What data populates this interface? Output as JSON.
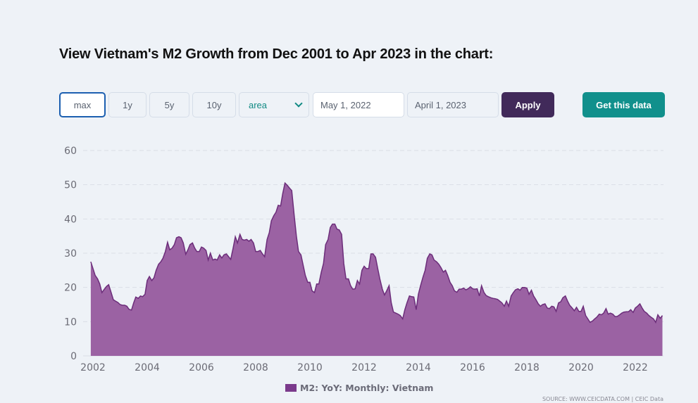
{
  "page": {
    "title": "View Vietnam's M2 Growth from Dec 2001 to Apr 2023 in the chart:"
  },
  "controls": {
    "ranges": [
      {
        "label": "max",
        "active": true
      },
      {
        "label": "1y",
        "active": false
      },
      {
        "label": "5y",
        "active": false
      },
      {
        "label": "10y",
        "active": false
      }
    ],
    "chart_type": {
      "selected": "area",
      "icon": "chevron-down-icon"
    },
    "start_date": "May 1, 2022",
    "end_date": "April 1, 2023",
    "apply_label": "Apply",
    "get_data_label": "Get this data"
  },
  "colors": {
    "area_fill": "#9b62a3",
    "area_line": "#6c2d7a",
    "apply_bg": "#412a5a",
    "get_data_bg": "#11908c",
    "active_border": "#1c5fb0"
  },
  "chart_data": {
    "type": "area",
    "title": "",
    "xlabel": "",
    "ylabel": "",
    "ylim": [
      0,
      60
    ],
    "xlim": [
      2001.9,
      2023.0
    ],
    "yticks": [
      0,
      10,
      20,
      30,
      40,
      50,
      60
    ],
    "xticks": [
      2002,
      2004,
      2006,
      2008,
      2010,
      2012,
      2014,
      2016,
      2018,
      2020,
      2022
    ],
    "grid": true,
    "legend_position": "bottom-center",
    "series": [
      {
        "name": "M2: YoY: Monthly: Vietnam",
        "points": [
          [
            2001.92,
            27.5
          ],
          [
            2002.0,
            25.5
          ],
          [
            2002.08,
            23.5
          ],
          [
            2002.17,
            22.5
          ],
          [
            2002.25,
            21.0
          ],
          [
            2002.33,
            18.5
          ],
          [
            2002.42,
            19.5
          ],
          [
            2002.5,
            20.3
          ],
          [
            2002.58,
            20.8
          ],
          [
            2002.67,
            18.5
          ],
          [
            2002.75,
            16.4
          ],
          [
            2002.83,
            16.0
          ],
          [
            2002.92,
            15.6
          ],
          [
            2003.0,
            15.0
          ],
          [
            2003.08,
            14.8
          ],
          [
            2003.17,
            14.8
          ],
          [
            2003.25,
            14.5
          ],
          [
            2003.33,
            13.6
          ],
          [
            2003.42,
            13.4
          ],
          [
            2003.5,
            15.5
          ],
          [
            2003.58,
            17.2
          ],
          [
            2003.67,
            16.8
          ],
          [
            2003.75,
            17.5
          ],
          [
            2003.83,
            17.3
          ],
          [
            2003.92,
            18.0
          ],
          [
            2004.0,
            22.0
          ],
          [
            2004.08,
            23.2
          ],
          [
            2004.17,
            22.0
          ],
          [
            2004.25,
            22.8
          ],
          [
            2004.33,
            25.0
          ],
          [
            2004.42,
            26.8
          ],
          [
            2004.5,
            27.5
          ],
          [
            2004.58,
            28.5
          ],
          [
            2004.67,
            30.5
          ],
          [
            2004.75,
            33.2
          ],
          [
            2004.83,
            31.0
          ],
          [
            2004.92,
            31.5
          ],
          [
            2005.0,
            32.5
          ],
          [
            2005.08,
            34.5
          ],
          [
            2005.17,
            34.8
          ],
          [
            2005.25,
            34.5
          ],
          [
            2005.33,
            33.0
          ],
          [
            2005.42,
            29.7
          ],
          [
            2005.5,
            31.0
          ],
          [
            2005.58,
            32.5
          ],
          [
            2005.67,
            33.0
          ],
          [
            2005.75,
            31.5
          ],
          [
            2005.83,
            30.5
          ],
          [
            2005.92,
            30.5
          ],
          [
            2006.0,
            31.8
          ],
          [
            2006.08,
            31.5
          ],
          [
            2006.17,
            30.8
          ],
          [
            2006.25,
            28.0
          ],
          [
            2006.33,
            30.0
          ],
          [
            2006.42,
            28.0
          ],
          [
            2006.5,
            28.3
          ],
          [
            2006.58,
            28.0
          ],
          [
            2006.67,
            29.5
          ],
          [
            2006.75,
            28.6
          ],
          [
            2006.83,
            29.5
          ],
          [
            2006.92,
            29.8
          ],
          [
            2007.0,
            29.0
          ],
          [
            2007.08,
            28.2
          ],
          [
            2007.17,
            31.5
          ],
          [
            2007.25,
            34.8
          ],
          [
            2007.33,
            33.0
          ],
          [
            2007.42,
            35.5
          ],
          [
            2007.5,
            34.0
          ],
          [
            2007.58,
            33.8
          ],
          [
            2007.67,
            34.0
          ],
          [
            2007.75,
            33.5
          ],
          [
            2007.83,
            34.0
          ],
          [
            2007.92,
            33.0
          ],
          [
            2008.0,
            30.5
          ],
          [
            2008.08,
            30.5
          ],
          [
            2008.17,
            30.8
          ],
          [
            2008.25,
            29.8
          ],
          [
            2008.33,
            29.0
          ],
          [
            2008.42,
            34.0
          ],
          [
            2008.5,
            36.0
          ],
          [
            2008.58,
            39.5
          ],
          [
            2008.67,
            41.0
          ],
          [
            2008.75,
            42.0
          ],
          [
            2008.83,
            44.0
          ],
          [
            2008.92,
            43.8
          ],
          [
            2009.0,
            47.5
          ],
          [
            2009.08,
            50.5
          ],
          [
            2009.17,
            49.8
          ],
          [
            2009.25,
            49.0
          ],
          [
            2009.33,
            48.3
          ],
          [
            2009.42,
            41.0
          ],
          [
            2009.5,
            35.0
          ],
          [
            2009.58,
            30.5
          ],
          [
            2009.67,
            29.5
          ],
          [
            2009.75,
            26.5
          ],
          [
            2009.83,
            23.5
          ],
          [
            2009.92,
            21.5
          ],
          [
            2010.0,
            21.5
          ],
          [
            2010.08,
            19.0
          ],
          [
            2010.17,
            18.5
          ],
          [
            2010.25,
            21.0
          ],
          [
            2010.33,
            21.0
          ],
          [
            2010.42,
            24.5
          ],
          [
            2010.5,
            27.0
          ],
          [
            2010.58,
            32.5
          ],
          [
            2010.67,
            34.0
          ],
          [
            2010.75,
            37.5
          ],
          [
            2010.83,
            38.5
          ],
          [
            2010.92,
            38.5
          ],
          [
            2011.0,
            37.0
          ],
          [
            2011.08,
            36.8
          ],
          [
            2011.17,
            35.5
          ],
          [
            2011.25,
            27.0
          ],
          [
            2011.33,
            22.5
          ],
          [
            2011.42,
            22.5
          ],
          [
            2011.5,
            20.5
          ],
          [
            2011.58,
            19.5
          ],
          [
            2011.67,
            19.6
          ],
          [
            2011.75,
            22.0
          ],
          [
            2011.83,
            21.0
          ],
          [
            2011.92,
            25.0
          ],
          [
            2012.0,
            26.2
          ],
          [
            2012.08,
            25.5
          ],
          [
            2012.17,
            25.5
          ],
          [
            2012.25,
            29.8
          ],
          [
            2012.33,
            29.8
          ],
          [
            2012.42,
            28.8
          ],
          [
            2012.5,
            25.5
          ],
          [
            2012.58,
            22.5
          ],
          [
            2012.67,
            19.5
          ],
          [
            2012.75,
            17.8
          ],
          [
            2012.83,
            19.0
          ],
          [
            2012.92,
            20.5
          ],
          [
            2013.0,
            15.5
          ],
          [
            2013.08,
            12.8
          ],
          [
            2013.17,
            12.5
          ],
          [
            2013.25,
            12.2
          ],
          [
            2013.33,
            11.8
          ],
          [
            2013.42,
            10.8
          ],
          [
            2013.5,
            13.5
          ],
          [
            2013.58,
            15.5
          ],
          [
            2013.67,
            17.5
          ],
          [
            2013.75,
            17.3
          ],
          [
            2013.83,
            17.2
          ],
          [
            2013.92,
            13.5
          ],
          [
            2014.0,
            18.0
          ],
          [
            2014.08,
            20.5
          ],
          [
            2014.17,
            23.0
          ],
          [
            2014.25,
            25.0
          ],
          [
            2014.33,
            28.5
          ],
          [
            2014.42,
            29.8
          ],
          [
            2014.5,
            29.5
          ],
          [
            2014.58,
            28.0
          ],
          [
            2014.67,
            27.5
          ],
          [
            2014.75,
            26.8
          ],
          [
            2014.83,
            25.8
          ],
          [
            2014.92,
            24.5
          ],
          [
            2015.0,
            25.0
          ],
          [
            2015.08,
            23.5
          ],
          [
            2015.17,
            21.5
          ],
          [
            2015.25,
            20.5
          ],
          [
            2015.33,
            19.0
          ],
          [
            2015.42,
            18.6
          ],
          [
            2015.5,
            19.5
          ],
          [
            2015.58,
            19.5
          ],
          [
            2015.67,
            19.8
          ],
          [
            2015.75,
            19.3
          ],
          [
            2015.83,
            19.6
          ],
          [
            2015.92,
            20.2
          ],
          [
            2016.0,
            19.6
          ],
          [
            2016.08,
            19.5
          ],
          [
            2016.17,
            19.6
          ],
          [
            2016.25,
            17.5
          ],
          [
            2016.33,
            20.5
          ],
          [
            2016.42,
            18.5
          ],
          [
            2016.5,
            17.6
          ],
          [
            2016.58,
            17.3
          ],
          [
            2016.67,
            17.0
          ],
          [
            2016.75,
            16.8
          ],
          [
            2016.83,
            16.7
          ],
          [
            2016.92,
            16.5
          ],
          [
            2017.0,
            16.0
          ],
          [
            2017.08,
            15.5
          ],
          [
            2017.17,
            14.5
          ],
          [
            2017.25,
            16.0
          ],
          [
            2017.33,
            14.5
          ],
          [
            2017.42,
            17.5
          ],
          [
            2017.5,
            18.5
          ],
          [
            2017.58,
            19.3
          ],
          [
            2017.67,
            19.6
          ],
          [
            2017.75,
            19.2
          ],
          [
            2017.83,
            20.0
          ],
          [
            2017.92,
            20.0
          ],
          [
            2018.0,
            19.8
          ],
          [
            2018.08,
            18.0
          ],
          [
            2018.17,
            19.2
          ],
          [
            2018.25,
            17.5
          ],
          [
            2018.33,
            16.5
          ],
          [
            2018.42,
            15.2
          ],
          [
            2018.5,
            14.5
          ],
          [
            2018.58,
            15.0
          ],
          [
            2018.67,
            15.2
          ],
          [
            2018.75,
            14.0
          ],
          [
            2018.83,
            13.8
          ],
          [
            2018.92,
            14.5
          ],
          [
            2019.0,
            14.3
          ],
          [
            2019.08,
            13.0
          ],
          [
            2019.17,
            15.5
          ],
          [
            2019.25,
            15.8
          ],
          [
            2019.33,
            17.0
          ],
          [
            2019.42,
            17.5
          ],
          [
            2019.5,
            16.0
          ],
          [
            2019.58,
            14.8
          ],
          [
            2019.67,
            14.0
          ],
          [
            2019.75,
            13.2
          ],
          [
            2019.83,
            14.2
          ],
          [
            2019.92,
            13.0
          ],
          [
            2020.0,
            13.0
          ],
          [
            2020.08,
            14.5
          ],
          [
            2020.17,
            11.8
          ],
          [
            2020.25,
            10.8
          ],
          [
            2020.33,
            9.8
          ],
          [
            2020.42,
            10.2
          ],
          [
            2020.5,
            10.8
          ],
          [
            2020.58,
            11.3
          ],
          [
            2020.67,
            12.2
          ],
          [
            2020.75,
            12.0
          ],
          [
            2020.83,
            12.5
          ],
          [
            2020.92,
            13.8
          ],
          [
            2021.0,
            12.2
          ],
          [
            2021.08,
            12.5
          ],
          [
            2021.17,
            12.2
          ],
          [
            2021.25,
            11.5
          ],
          [
            2021.33,
            11.5
          ],
          [
            2021.42,
            12.0
          ],
          [
            2021.5,
            12.5
          ],
          [
            2021.58,
            12.8
          ],
          [
            2021.67,
            12.9
          ],
          [
            2021.75,
            12.9
          ],
          [
            2021.83,
            13.5
          ],
          [
            2021.92,
            12.7
          ],
          [
            2022.0,
            14.0
          ],
          [
            2022.08,
            14.5
          ],
          [
            2022.17,
            15.2
          ],
          [
            2022.25,
            14.0
          ],
          [
            2022.33,
            13.0
          ],
          [
            2022.42,
            12.5
          ],
          [
            2022.5,
            11.8
          ],
          [
            2022.58,
            11.3
          ],
          [
            2022.67,
            10.8
          ],
          [
            2022.75,
            9.8
          ],
          [
            2022.83,
            12.0
          ],
          [
            2022.92,
            11.0
          ],
          [
            2023.0,
            11.8
          ]
        ]
      }
    ],
    "source": "SOURCE: WWW.CEICDATA.COM | CEIC Data"
  }
}
